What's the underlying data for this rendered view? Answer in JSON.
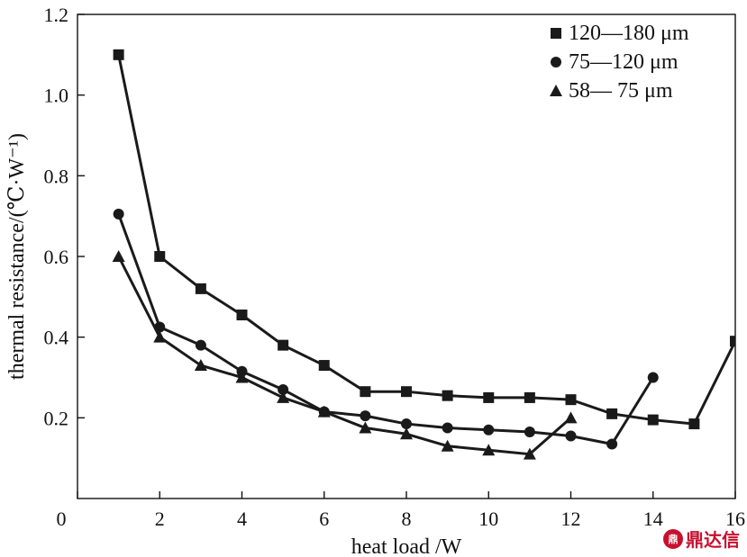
{
  "chart_data": {
    "type": "line",
    "title": "",
    "xlabel": "heat load /W",
    "ylabel": "thermal resistance/(℃·W⁻¹)",
    "xlim": [
      0,
      16
    ],
    "ylim": [
      0,
      1.2
    ],
    "xticks": [
      0,
      2,
      4,
      6,
      8,
      10,
      12,
      14,
      16
    ],
    "yticks": [
      0.2,
      0.4,
      0.6,
      0.8,
      1.0,
      1.2
    ],
    "xtick_labels": [
      "0",
      "2",
      "4",
      "6",
      "8",
      "10",
      "12",
      "14",
      "16"
    ],
    "ytick_labels": [
      "0.2",
      "0.4",
      "0.6",
      "0.8",
      "1.0",
      "1.2"
    ],
    "grid": false,
    "legend_position": "top-right",
    "series": [
      {
        "name": "120—180 μm",
        "marker": "square",
        "x": [
          1,
          2,
          3,
          4,
          5,
          6,
          7,
          8,
          9,
          10,
          11,
          12,
          13,
          14,
          15,
          16
        ],
        "y": [
          1.1,
          0.6,
          0.52,
          0.455,
          0.38,
          0.33,
          0.265,
          0.265,
          0.255,
          0.25,
          0.25,
          0.245,
          0.21,
          0.195,
          0.185,
          0.39
        ]
      },
      {
        "name": "75—120 μm",
        "marker": "circle",
        "x": [
          1,
          2,
          3,
          4,
          5,
          6,
          7,
          8,
          9,
          10,
          11,
          12,
          13,
          14
        ],
        "y": [
          0.705,
          0.425,
          0.38,
          0.315,
          0.27,
          0.215,
          0.205,
          0.185,
          0.175,
          0.17,
          0.165,
          0.155,
          0.135,
          0.3
        ]
      },
      {
        "name": "58— 75 μm",
        "marker": "triangle",
        "x": [
          1,
          2,
          3,
          4,
          5,
          6,
          7,
          8,
          9,
          10,
          11,
          12
        ],
        "y": [
          0.6,
          0.4,
          0.33,
          0.3,
          0.25,
          0.215,
          0.175,
          0.16,
          0.13,
          0.12,
          0.11,
          0.2
        ]
      }
    ]
  },
  "watermark": {
    "seal_text": "ЁЯЫ",
    "text": "鼎达信"
  },
  "icons": {
    "watermark_seal": "seal-icon"
  }
}
